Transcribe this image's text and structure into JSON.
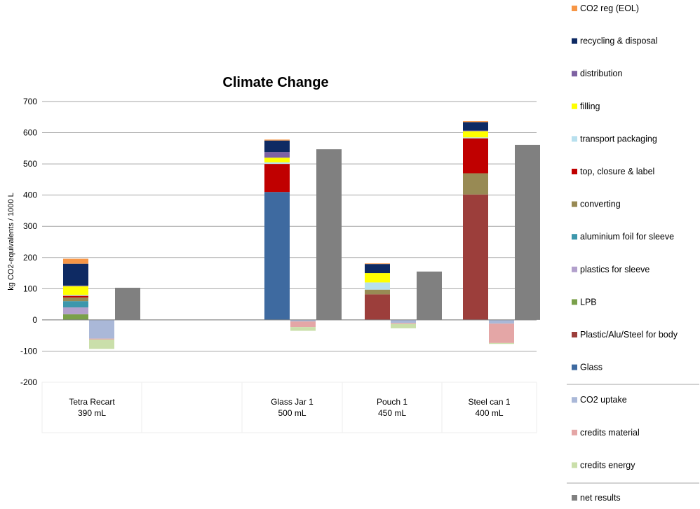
{
  "chart_data": {
    "type": "bar",
    "title": "Climate Change",
    "ylabel": "kg CO2-equivalents / 1000 L",
    "xlabel": "",
    "ylim": [
      -200,
      700
    ],
    "yticks": [
      -200,
      -100,
      0,
      100,
      200,
      300,
      400,
      500,
      600,
      700
    ],
    "grid": true,
    "legend_position": "right",
    "stacked": true,
    "categories": [
      {
        "name": "Tetra Recart",
        "volume": "390 mL"
      },
      {
        "name": "",
        "volume": ""
      },
      {
        "name": "Glass Jar 1",
        "volume": "500 mL"
      },
      {
        "name": "Pouch 1",
        "volume": "450 mL"
      },
      {
        "name": "Steel can 1",
        "volume": "400 mL"
      }
    ],
    "burden_series": [
      {
        "name": "Glass",
        "color": "#3e6aa0",
        "values": [
          0,
          null,
          410,
          0,
          0
        ]
      },
      {
        "name": "Plastic/Alu/Steel for body",
        "color": "#9c3e3b",
        "values": [
          0,
          null,
          0,
          82,
          402
        ]
      },
      {
        "name": "LPB",
        "color": "#7aa04a",
        "values": [
          18,
          null,
          0,
          0,
          0
        ]
      },
      {
        "name": "plastics for sleeve",
        "color": "#b2a0cc",
        "values": [
          22,
          null,
          0,
          0,
          0
        ]
      },
      {
        "name": "aluminium foil for sleeve",
        "color": "#3d97ac",
        "values": [
          20,
          null,
          0,
          0,
          0
        ]
      },
      {
        "name": "converting",
        "color": "#988a54",
        "values": [
          12,
          null,
          0,
          15,
          68
        ]
      },
      {
        "name": "top, closure & label",
        "color": "#c00000",
        "values": [
          5,
          null,
          90,
          0,
          112
        ]
      },
      {
        "name": "transport packaging",
        "color": "#b8e0ee",
        "values": [
          3,
          null,
          5,
          23,
          3
        ]
      },
      {
        "name": "filling",
        "color": "#ffff00",
        "values": [
          28,
          null,
          15,
          30,
          20
        ]
      },
      {
        "name": "distribution",
        "color": "#7e62a2",
        "values": [
          2,
          null,
          18,
          0,
          2
        ]
      },
      {
        "name": "recycling & disposal",
        "color": "#0e2a63",
        "values": [
          70,
          null,
          37,
          29,
          27
        ]
      },
      {
        "name": "CO2 reg (EOL)",
        "color": "#f79646",
        "values": [
          16,
          null,
          3,
          2,
          3
        ]
      }
    ],
    "credit_series": [
      {
        "name": "CO2 uptake",
        "color": "#aab8d8",
        "values": [
          -60,
          null,
          -5,
          -10,
          -12
        ]
      },
      {
        "name": "credits material",
        "color": "#e4a6a6",
        "values": [
          -3,
          null,
          -18,
          -3,
          -62
        ]
      },
      {
        "name": "credits energy",
        "color": "#cadfaa",
        "values": [
          -30,
          null,
          -12,
          -14,
          -3
        ]
      }
    ],
    "net_series": {
      "name": "net results",
      "color": "#808080",
      "values": [
        103,
        null,
        547,
        155,
        561
      ]
    }
  },
  "legend": {
    "items": [
      {
        "label": "CO2 reg (EOL)",
        "color": "#f79646"
      },
      {
        "label": "recycling & disposal",
        "color": "#0e2a63"
      },
      {
        "label": "distribution",
        "color": "#7e62a2"
      },
      {
        "label": "filling",
        "color": "#ffff00"
      },
      {
        "label": "transport packaging",
        "color": "#b8e0ee"
      },
      {
        "label": "top, closure & label",
        "color": "#c00000"
      },
      {
        "label": "converting",
        "color": "#988a54"
      },
      {
        "label": "aluminium foil for sleeve",
        "color": "#3d97ac"
      },
      {
        "label": "plastics for sleeve",
        "color": "#b2a0cc"
      },
      {
        "label": "LPB",
        "color": "#7aa04a"
      },
      {
        "label": "Plastic/Alu/Steel for body",
        "color": "#9c3e3b"
      },
      {
        "label": "Glass",
        "color": "#3e6aa0"
      },
      {
        "label": "CO2 uptake",
        "color": "#aab8d8"
      },
      {
        "label": "credits material",
        "color": "#e4a6a6"
      },
      {
        "label": "credits energy",
        "color": "#cadfaa"
      },
      {
        "label": "net results",
        "color": "#808080"
      }
    ]
  }
}
